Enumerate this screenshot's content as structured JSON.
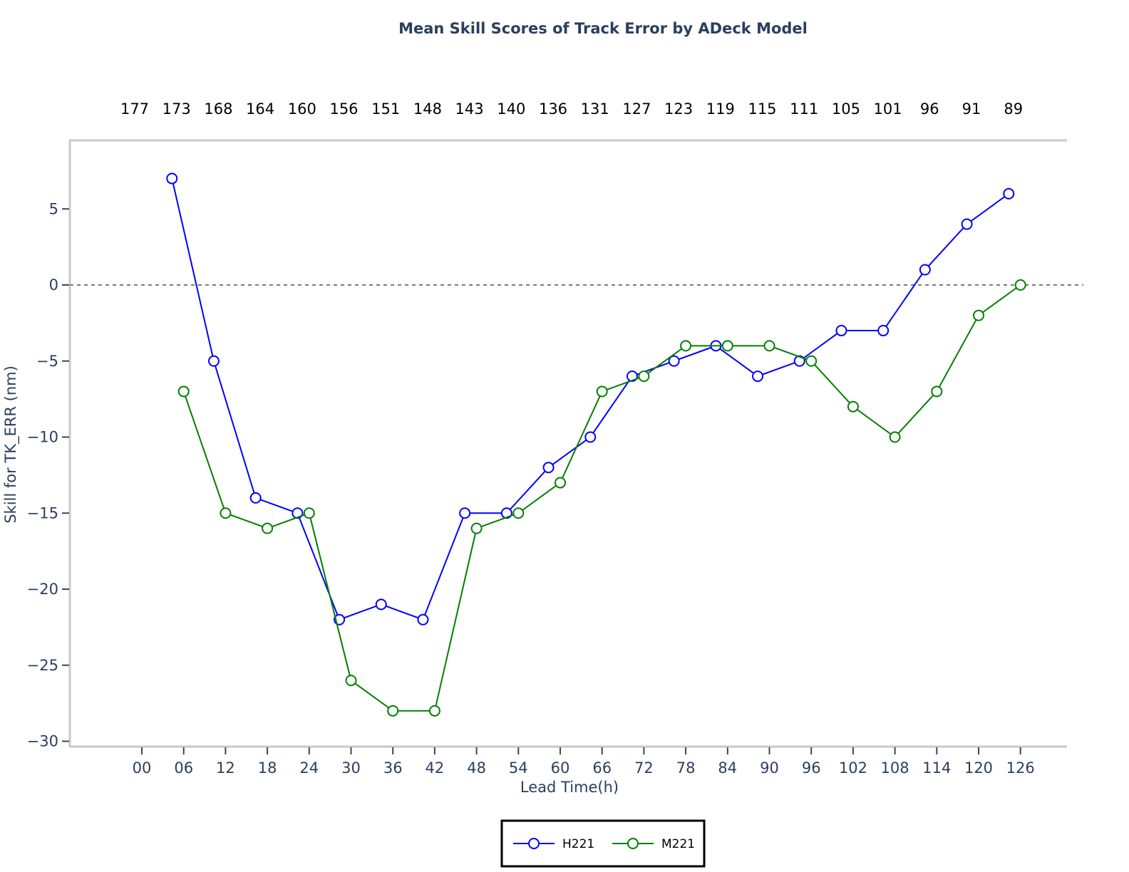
{
  "chart_data": {
    "type": "line",
    "title": "Mean Skill Scores of Track Error by ADeck Model",
    "xlabel": "Lead Time(h)",
    "ylabel": "Skill for TK_ERR (nm)",
    "categories": [
      "00",
      "06",
      "12",
      "18",
      "24",
      "30",
      "36",
      "42",
      "48",
      "54",
      "60",
      "66",
      "72",
      "78",
      "84",
      "90",
      "96",
      "102",
      "108",
      "114",
      "120",
      "126"
    ],
    "sample_counts": [
      "177",
      "173",
      "168",
      "164",
      "160",
      "156",
      "151",
      "148",
      "143",
      "140",
      "136",
      "131",
      "127",
      "123",
      "119",
      "115",
      "111",
      "105",
      "101",
      "96",
      "91",
      "89"
    ],
    "yticks": [
      5,
      0,
      -5,
      -10,
      -15,
      -20,
      -25,
      -30
    ],
    "ytick_labels": [
      "5",
      "0",
      "−5",
      "−10",
      "−15",
      "−20",
      "−25",
      "−30"
    ],
    "ylim": [
      -30.5,
      9
    ],
    "reference_line": 0,
    "series": [
      {
        "name": "H221",
        "color": "#0000ff",
        "x_offset": -0.28,
        "values": [
          null,
          7,
          -5,
          -14,
          -15,
          -22,
          -21,
          -22,
          -15,
          -15,
          -12,
          -10,
          -6,
          -5,
          -4,
          -6,
          -5,
          -3,
          -3,
          1,
          4,
          6
        ]
      },
      {
        "name": "M221",
        "color": "#008000",
        "x_offset": 0,
        "values": [
          null,
          -7,
          -15,
          -16,
          -15,
          -26,
          -28,
          -28,
          -16,
          -15,
          -13,
          -7,
          -6,
          -4,
          -4,
          -4,
          -5,
          -8,
          -10,
          -7,
          -2,
          0
        ]
      }
    ],
    "legend_position": "bottom-center",
    "grid": false
  }
}
